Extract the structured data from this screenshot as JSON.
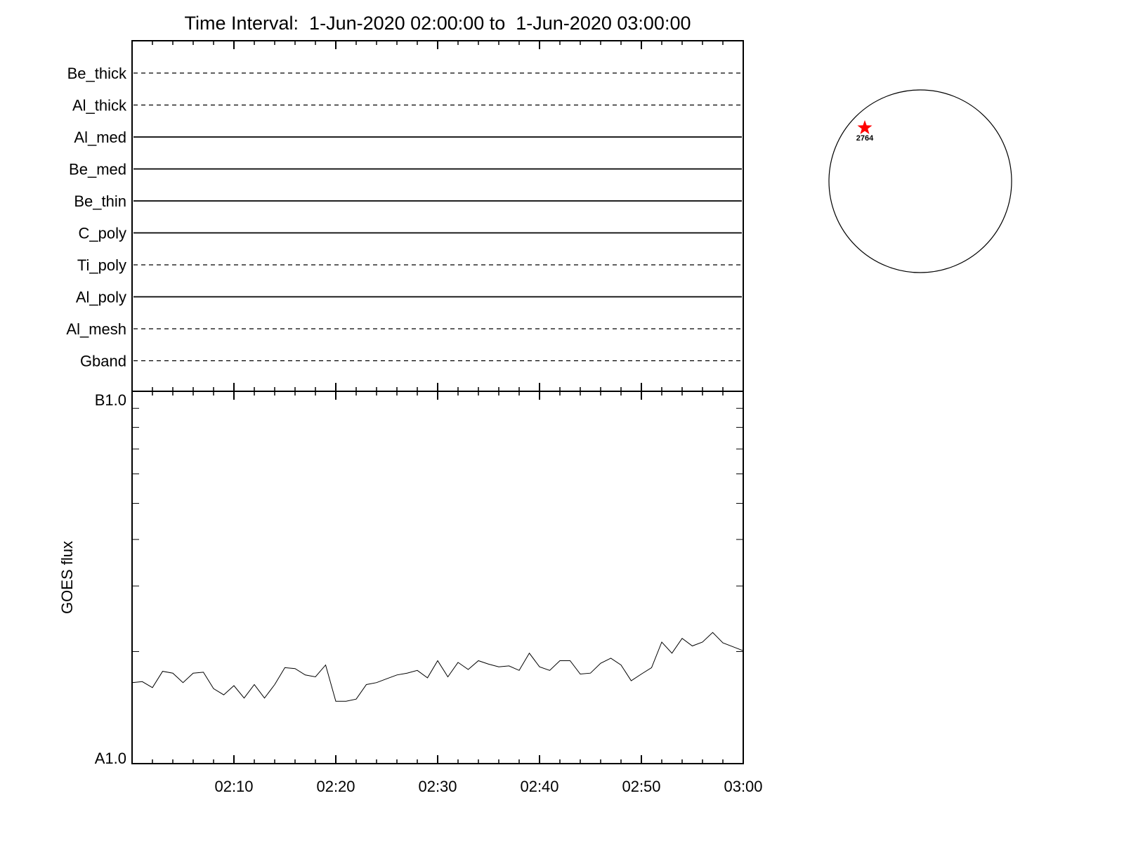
{
  "chart_data": [
    {
      "type": "table",
      "title": "Time Interval:  1-Jun-2020 02:00:00 to  1-Jun-2020 03:00:00",
      "channels": [
        {
          "name": "Be_thick",
          "style": "dashed"
        },
        {
          "name": "Al_thick",
          "style": "dashed"
        },
        {
          "name": "Al_med",
          "style": "solid"
        },
        {
          "name": "Be_med",
          "style": "solid"
        },
        {
          "name": "Be_thin",
          "style": "solid"
        },
        {
          "name": "C_poly",
          "style": "solid"
        },
        {
          "name": "Ti_poly",
          "style": "dashed"
        },
        {
          "name": "Al_poly",
          "style": "solid"
        },
        {
          "name": "Al_mesh",
          "style": "dashed"
        },
        {
          "name": "Gband",
          "style": "dashed"
        }
      ]
    },
    {
      "type": "line",
      "ylabel": "GOES flux",
      "xlabel": "",
      "yscale": "log",
      "ylim": [
        1e-08,
        1e-07
      ],
      "ytick_labels": [
        "A1.0",
        "B1.0"
      ],
      "xlim": [
        "02:00",
        "03:00"
      ],
      "xtick_labels": [
        "02:10",
        "02:20",
        "02:30",
        "02:40",
        "02:50",
        "03:00"
      ],
      "grid": false,
      "line_color": "#000000",
      "x": [
        "02:00",
        "02:01",
        "02:02",
        "02:03",
        "02:04",
        "02:05",
        "02:06",
        "02:07",
        "02:08",
        "02:09",
        "02:10",
        "02:11",
        "02:12",
        "02:13",
        "02:14",
        "02:15",
        "02:16",
        "02:17",
        "02:18",
        "02:19",
        "02:20",
        "02:21",
        "02:22",
        "02:23",
        "02:24",
        "02:25",
        "02:26",
        "02:27",
        "02:28",
        "02:29",
        "02:30",
        "02:31",
        "02:32",
        "02:33",
        "02:34",
        "02:35",
        "02:36",
        "02:37",
        "02:38",
        "02:39",
        "02:40",
        "02:41",
        "02:42",
        "02:43",
        "02:44",
        "02:45",
        "02:46",
        "02:47",
        "02:48",
        "02:49",
        "02:50",
        "02:51",
        "02:52",
        "02:53",
        "02:54",
        "02:55",
        "02:56",
        "02:57",
        "02:58",
        "02:59",
        "03:00"
      ],
      "y": [
        1.65e-08,
        1.66e-08,
        1.6e-08,
        1.77e-08,
        1.75e-08,
        1.65e-08,
        1.75e-08,
        1.76e-08,
        1.59e-08,
        1.53e-08,
        1.62e-08,
        1.5e-08,
        1.63e-08,
        1.5e-08,
        1.63e-08,
        1.81e-08,
        1.8e-08,
        1.73e-08,
        1.71e-08,
        1.84e-08,
        1.47e-08,
        1.47e-08,
        1.49e-08,
        1.63e-08,
        1.65e-08,
        1.69e-08,
        1.73e-08,
        1.75e-08,
        1.78e-08,
        1.7e-08,
        1.89e-08,
        1.71e-08,
        1.87e-08,
        1.79e-08,
        1.89e-08,
        1.85e-08,
        1.82e-08,
        1.83e-08,
        1.78e-08,
        1.98e-08,
        1.82e-08,
        1.78e-08,
        1.89e-08,
        1.89e-08,
        1.74e-08,
        1.75e-08,
        1.86e-08,
        1.92e-08,
        1.84e-08,
        1.67e-08,
        1.74e-08,
        1.81e-08,
        2.12e-08,
        1.98e-08,
        2.17e-08,
        2.07e-08,
        2.12e-08,
        2.25e-08,
        2.11e-08,
        2.06e-08,
        2.01e-08
      ]
    }
  ],
  "solar_disk": {
    "active_region": "2764",
    "marker_color": "#ff0000",
    "limb_color": "#000000"
  }
}
